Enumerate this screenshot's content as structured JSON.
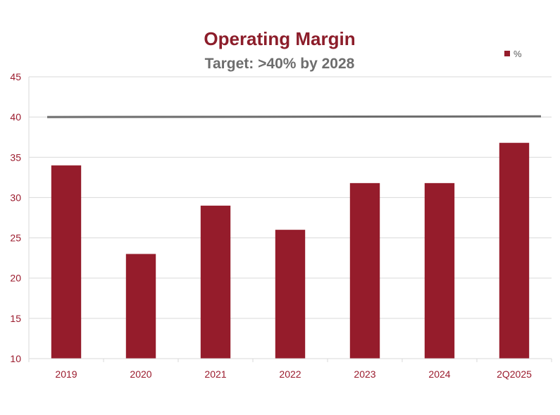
{
  "chart_data": {
    "type": "bar",
    "title": "Operating Margin",
    "subtitle": "Target: >40% by 2028",
    "categories": [
      "2019",
      "2020",
      "2021",
      "2022",
      "2023",
      "2024",
      "2Q2025"
    ],
    "series": [
      {
        "name": "%",
        "values": [
          34,
          23,
          29,
          26,
          31.8,
          31.8,
          36.8
        ]
      }
    ],
    "target_line": 40,
    "ylim": [
      10,
      45
    ],
    "yticks": [
      10,
      15,
      20,
      25,
      30,
      35,
      40,
      45
    ],
    "grid": true,
    "legend_position": "top-right",
    "colors": {
      "bar": "#951c2b",
      "target_line": "#6d6d6d",
      "grid": "#d9d9d9",
      "title": "#8c1d2a",
      "subtitle": "#6d6d6d",
      "tick_labels": "#9b1b2d"
    }
  }
}
